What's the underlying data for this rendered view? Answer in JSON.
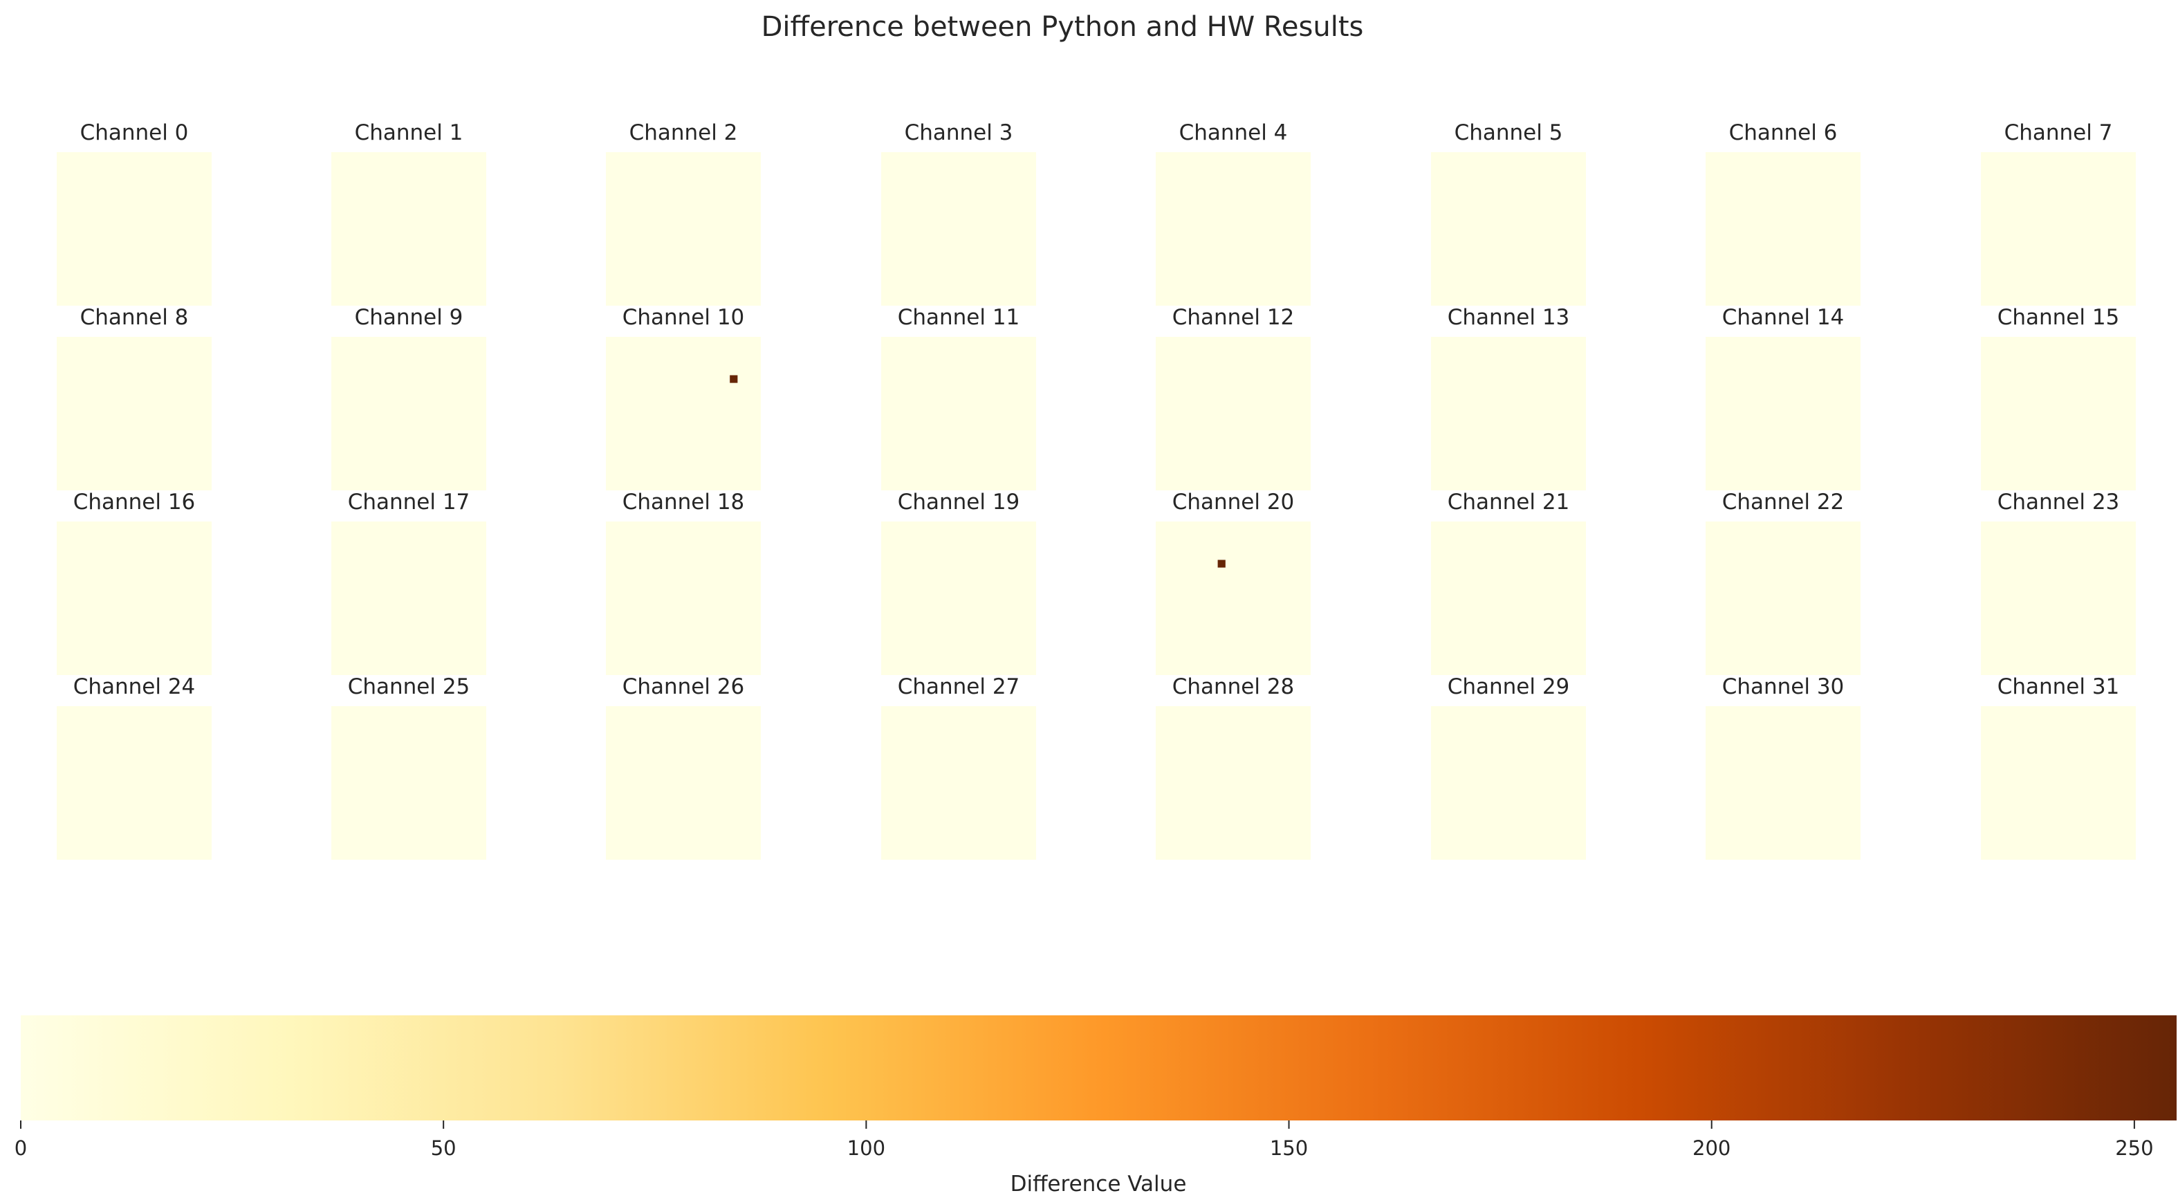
{
  "chart_data": {
    "type": "heatmap",
    "title": "Difference between Python and HW Results",
    "panels": [
      {
        "title": "Channel 0",
        "cells": []
      },
      {
        "title": "Channel 1",
        "cells": []
      },
      {
        "title": "Channel 2",
        "cells": []
      },
      {
        "title": "Channel 3",
        "cells": []
      },
      {
        "title": "Channel 4",
        "cells": []
      },
      {
        "title": "Channel 5",
        "cells": []
      },
      {
        "title": "Channel 6",
        "cells": []
      },
      {
        "title": "Channel 7",
        "cells": []
      },
      {
        "title": "Channel 8",
        "cells": []
      },
      {
        "title": "Channel 9",
        "cells": []
      },
      {
        "title": "Channel 10",
        "cells": [
          {
            "row": 5,
            "col": 16,
            "value": 255
          }
        ]
      },
      {
        "title": "Channel 11",
        "cells": []
      },
      {
        "title": "Channel 12",
        "cells": []
      },
      {
        "title": "Channel 13",
        "cells": []
      },
      {
        "title": "Channel 14",
        "cells": []
      },
      {
        "title": "Channel 15",
        "cells": []
      },
      {
        "title": "Channel 16",
        "cells": []
      },
      {
        "title": "Channel 17",
        "cells": []
      },
      {
        "title": "Channel 18",
        "cells": []
      },
      {
        "title": "Channel 19",
        "cells": []
      },
      {
        "title": "Channel 20",
        "cells": [
          {
            "row": 5,
            "col": 8,
            "value": 255
          }
        ]
      },
      {
        "title": "Channel 21",
        "cells": []
      },
      {
        "title": "Channel 22",
        "cells": []
      },
      {
        "title": "Channel 23",
        "cells": []
      },
      {
        "title": "Channel 24",
        "cells": []
      },
      {
        "title": "Channel 25",
        "cells": []
      },
      {
        "title": "Channel 26",
        "cells": []
      },
      {
        "title": "Channel 27",
        "cells": []
      },
      {
        "title": "Channel 28",
        "cells": []
      },
      {
        "title": "Channel 29",
        "cells": []
      },
      {
        "title": "Channel 30",
        "cells": []
      },
      {
        "title": "Channel 31",
        "cells": []
      }
    ],
    "panel_grid": {
      "rows": 4,
      "cols": 8
    },
    "cells_per_side": 20,
    "colormap": "YlOrBr",
    "colormap_stops": [
      "#ffffe5",
      "#fff7bc",
      "#fee391",
      "#fec44f",
      "#fe9929",
      "#ec7014",
      "#cc4c02",
      "#993404",
      "#662506"
    ],
    "colorbar": {
      "label": "Difference Value",
      "range": [
        0,
        255
      ],
      "ticks": [
        0,
        50,
        100,
        150,
        200,
        250
      ],
      "orientation": "horizontal",
      "placement": "bottom"
    },
    "background_value": 0
  }
}
